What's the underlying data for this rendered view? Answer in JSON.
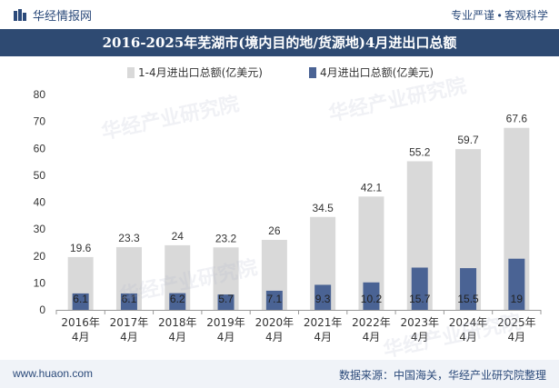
{
  "header": {
    "brand": "华经情报网",
    "slogan": "专业严谨 • 客观科学"
  },
  "title": "2016-2025年芜湖市(境内目的地/货源地)4月进出口总额",
  "footer": {
    "website": "www.huaon.com",
    "source": "数据来源：中国海关，华经产业研究院整理"
  },
  "watermark": "华经产业研究院",
  "colors": {
    "header_bg": "#2e4a72",
    "series_1": "#d9d9d9",
    "series_2": "#4a6394",
    "brand": "#2b4a7a"
  },
  "chart_data": {
    "type": "bar",
    "categories": [
      [
        "2016年",
        "4月"
      ],
      [
        "2017年",
        "4月"
      ],
      [
        "2018年",
        "4月"
      ],
      [
        "2019年",
        "4月"
      ],
      [
        "2020年",
        "4月"
      ],
      [
        "2021年",
        "4月"
      ],
      [
        "2022年",
        "4月"
      ],
      [
        "2023年",
        "4月"
      ],
      [
        "2024年",
        "4月"
      ],
      [
        "2025年",
        "4月"
      ]
    ],
    "series": [
      {
        "name": "1-4月进出口总额(亿美元)",
        "values": [
          19.6,
          23.3,
          24,
          23.2,
          26,
          34.5,
          42.1,
          55.2,
          59.7,
          67.6
        ]
      },
      {
        "name": "4月进出口总额(亿美元)",
        "values": [
          6.1,
          6.1,
          6.2,
          5.7,
          7.1,
          9.3,
          10.2,
          15.7,
          15.5,
          19
        ]
      }
    ],
    "ylim": [
      0,
      80
    ],
    "yticks": [
      0,
      10,
      20,
      30,
      40,
      50,
      60,
      70,
      80
    ],
    "legend_position": "top-center",
    "grid": false
  }
}
